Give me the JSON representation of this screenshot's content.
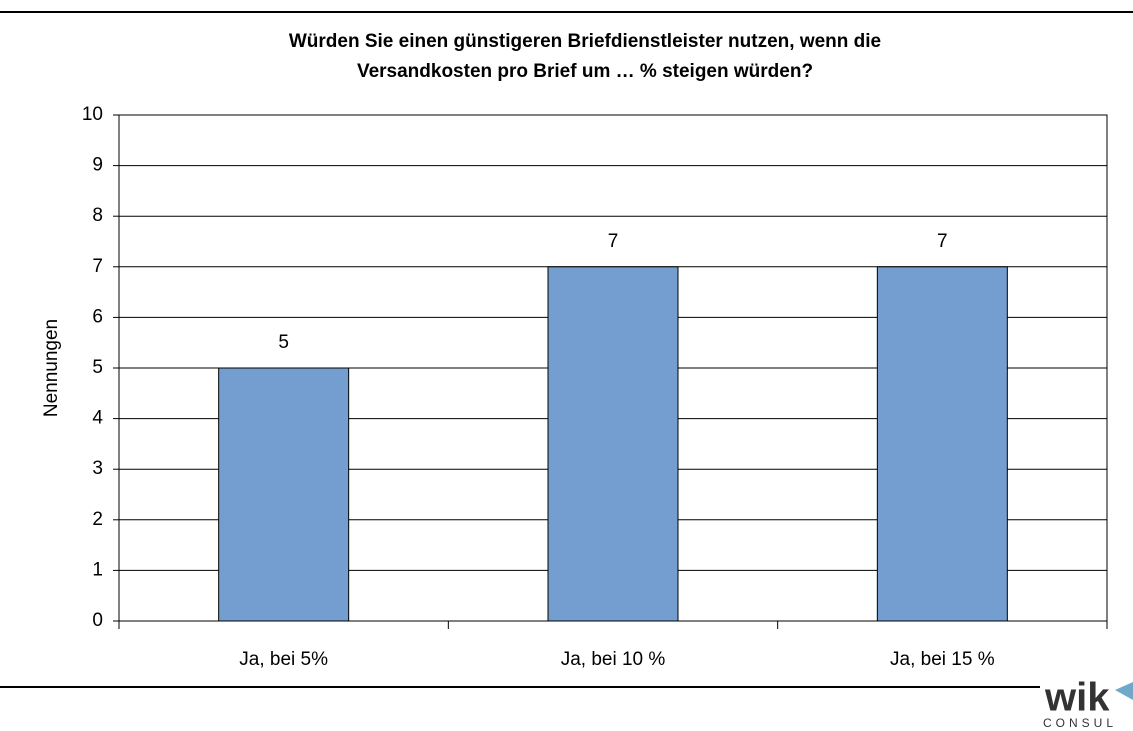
{
  "chart_data": {
    "type": "bar",
    "title": [
      "Würden Sie einen günstigeren Briefdienstleister nutzen, wenn die",
      "Versandkosten pro Brief um … % steigen würden?"
    ],
    "y_label": "Nennungen",
    "categories": [
      "Ja, bei 5%",
      "Ja, bei 10 %",
      "Ja, bei 15 %"
    ],
    "values": [
      5,
      7,
      7
    ],
    "color": "#749ecf",
    "ylim": [
      0,
      10
    ],
    "yticks": [
      0,
      1,
      2,
      3,
      4,
      5,
      6,
      7,
      8,
      9,
      10
    ],
    "grid": true
  },
  "logo": {
    "name": "wik",
    "subtitle": "CONSUL"
  }
}
